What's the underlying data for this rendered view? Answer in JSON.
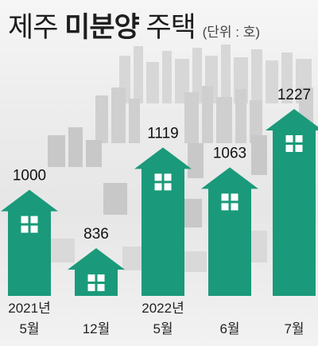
{
  "title": {
    "normal_1": "제주",
    "bold": "미분양",
    "normal_2": "주택",
    "unit": "(단위 : 호)"
  },
  "colors": {
    "house": "#1a9a7a",
    "window": "#ffffff",
    "text": "#1e1e1e"
  },
  "chart_data": {
    "type": "bar",
    "style": "house-shaped bars with window icon",
    "title": "제주 미분양 주택",
    "unit": "(단위 : 호)",
    "categories": [
      {
        "year": "2021년",
        "month": "5월"
      },
      {
        "year": "",
        "month": "12월"
      },
      {
        "year": "2022년",
        "month": "5월"
      },
      {
        "year": "",
        "month": "6월"
      },
      {
        "year": "",
        "month": "7월"
      }
    ],
    "values": [
      1000,
      836,
      1119,
      1063,
      1227
    ],
    "value_labels": [
      "1000",
      "836",
      "1119",
      "1063",
      "1227"
    ],
    "ylim": [
      0,
      1227
    ],
    "grid": false,
    "legend": "none"
  }
}
